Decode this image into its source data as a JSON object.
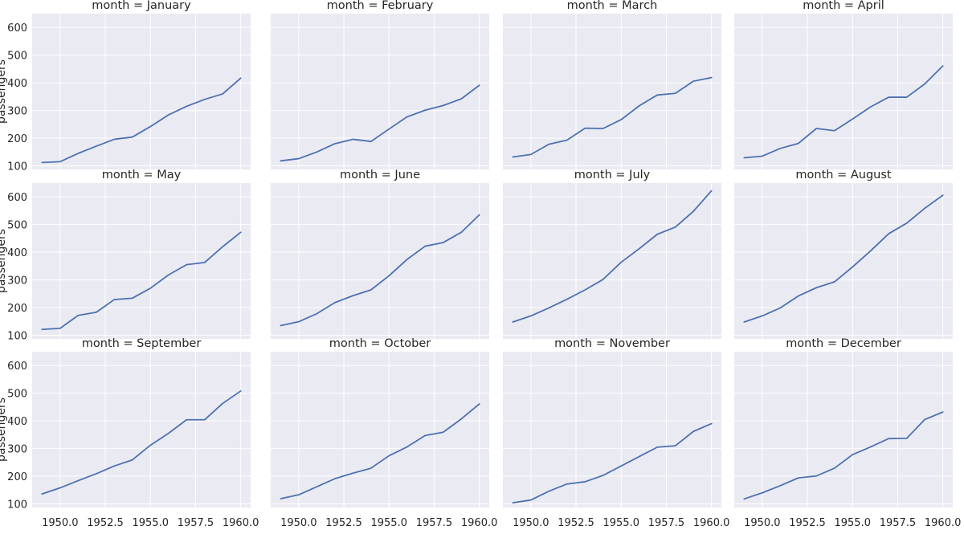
{
  "chart_data": {
    "type": "line",
    "layout": "facet-grid",
    "facet_variable": "month",
    "xlabel": "",
    "ylabel": "passengers",
    "ylim": [
      87,
      650
    ],
    "xlim": [
      1948.45,
      1960.55
    ],
    "yticks": [
      100,
      200,
      300,
      400,
      500,
      600
    ],
    "xticks": [
      1950.0,
      1952.5,
      1955.0,
      1957.5,
      1960.0
    ],
    "xtick_labels": [
      "1950.0",
      "1952.5",
      "1955.0",
      "1957.5",
      "1960.0"
    ],
    "grid": true,
    "style": {
      "panel_background": "#eaeaf2",
      "grid_color": "#ffffff",
      "line_color": "#4c72b0"
    },
    "x": [
      1949,
      1950,
      1951,
      1952,
      1953,
      1954,
      1955,
      1956,
      1957,
      1958,
      1959,
      1960
    ],
    "facets": [
      {
        "title": "month = January",
        "values": [
          112,
          115,
          145,
          171,
          196,
          204,
          242,
          284,
          315,
          340,
          360,
          417
        ]
      },
      {
        "title": "month = February",
        "values": [
          118,
          126,
          150,
          180,
          196,
          188,
          233,
          277,
          301,
          318,
          342,
          391
        ]
      },
      {
        "title": "month = March",
        "values": [
          132,
          141,
          178,
          193,
          236,
          235,
          267,
          317,
          356,
          362,
          406,
          419
        ]
      },
      {
        "title": "month = April",
        "values": [
          129,
          135,
          163,
          181,
          235,
          227,
          269,
          313,
          348,
          348,
          396,
          461
        ]
      },
      {
        "title": "month = May",
        "values": [
          121,
          125,
          172,
          183,
          229,
          234,
          270,
          318,
          355,
          363,
          420,
          472
        ]
      },
      {
        "title": "month = June",
        "values": [
          135,
          149,
          178,
          218,
          243,
          264,
          315,
          374,
          422,
          435,
          472,
          535
        ]
      },
      {
        "title": "month = July",
        "values": [
          148,
          170,
          199,
          230,
          264,
          302,
          364,
          413,
          465,
          491,
          548,
          622
        ]
      },
      {
        "title": "month = August",
        "values": [
          148,
          170,
          199,
          242,
          272,
          293,
          347,
          405,
          467,
          505,
          559,
          606
        ]
      },
      {
        "title": "month = September",
        "values": [
          136,
          158,
          184,
          209,
          237,
          259,
          312,
          355,
          404,
          404,
          463,
          508
        ]
      },
      {
        "title": "month = October",
        "values": [
          119,
          133,
          162,
          191,
          211,
          229,
          274,
          306,
          347,
          359,
          407,
          461
        ]
      },
      {
        "title": "month = November",
        "values": [
          104,
          114,
          146,
          172,
          180,
          203,
          237,
          271,
          305,
          310,
          362,
          390
        ]
      },
      {
        "title": "month = December",
        "values": [
          118,
          140,
          166,
          194,
          201,
          229,
          278,
          306,
          336,
          337,
          405,
          432
        ]
      }
    ]
  }
}
